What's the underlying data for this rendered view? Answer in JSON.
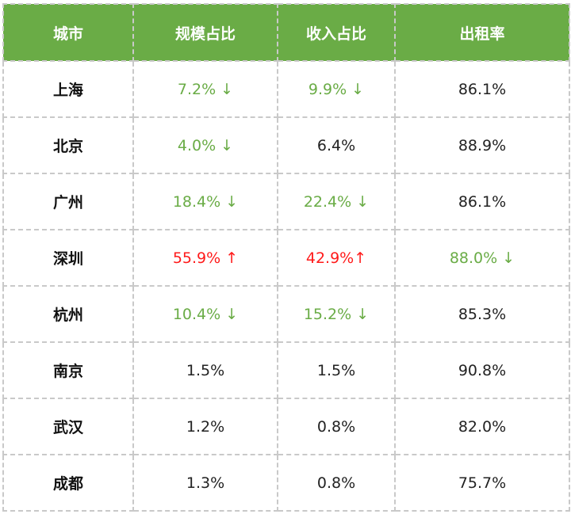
{
  "colors": {
    "header_bg": "#6aac46",
    "down": "#6aac46",
    "up": "#ff1a1a",
    "plain": "#222222"
  },
  "table": {
    "headers": [
      "城市",
      "规模占比",
      "收入占比",
      "出租率"
    ],
    "rows": [
      {
        "city": "上海",
        "scale": {
          "text": "7.2% ↓",
          "trend": "down"
        },
        "income": {
          "text": "9.9% ↓",
          "trend": "down"
        },
        "occupancy": {
          "text": "86.1%",
          "trend": "plain"
        }
      },
      {
        "city": "北京",
        "scale": {
          "text": "4.0% ↓",
          "trend": "down"
        },
        "income": {
          "text": "6.4%",
          "trend": "plain"
        },
        "occupancy": {
          "text": "88.9%",
          "trend": "plain"
        }
      },
      {
        "city": "广州",
        "scale": {
          "text": "18.4% ↓",
          "trend": "down"
        },
        "income": {
          "text": "22.4% ↓",
          "trend": "down"
        },
        "occupancy": {
          "text": "86.1%",
          "trend": "plain"
        }
      },
      {
        "city": "深圳",
        "scale": {
          "text": "55.9% ↑",
          "trend": "up"
        },
        "income": {
          "text": "42.9%↑",
          "trend": "up"
        },
        "occupancy": {
          "text": "88.0% ↓",
          "trend": "down"
        }
      },
      {
        "city": "杭州",
        "scale": {
          "text": "10.4% ↓",
          "trend": "down"
        },
        "income": {
          "text": "15.2% ↓",
          "trend": "down"
        },
        "occupancy": {
          "text": "85.3%",
          "trend": "plain"
        }
      },
      {
        "city": "南京",
        "scale": {
          "text": "1.5%",
          "trend": "plain"
        },
        "income": {
          "text": "1.5%",
          "trend": "plain"
        },
        "occupancy": {
          "text": "90.8%",
          "trend": "plain"
        }
      },
      {
        "city": "武汉",
        "scale": {
          "text": "1.2%",
          "trend": "plain"
        },
        "income": {
          "text": "0.8%",
          "trend": "plain"
        },
        "occupancy": {
          "text": "82.0%",
          "trend": "plain"
        }
      },
      {
        "city": "成都",
        "scale": {
          "text": "1.3%",
          "trend": "plain"
        },
        "income": {
          "text": "0.8%",
          "trend": "plain"
        },
        "occupancy": {
          "text": "75.7%",
          "trend": "plain"
        }
      }
    ]
  }
}
